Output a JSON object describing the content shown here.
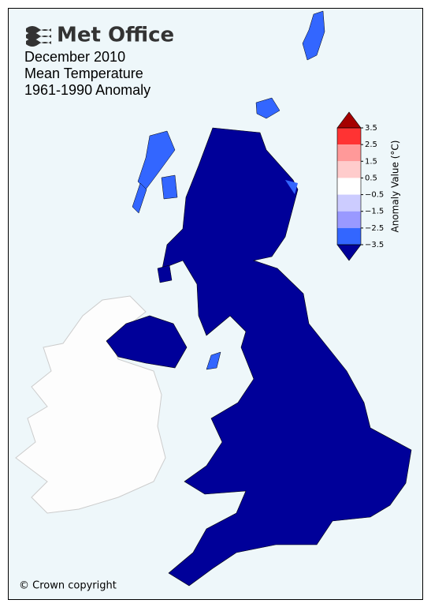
{
  "header": {
    "logo": "Met Office",
    "title_lines": [
      "December 2010",
      "Mean Temperature",
      "1961-1990 Anomaly"
    ]
  },
  "colorbar": {
    "label": "Anomaly Value (°C)",
    "ylim": [
      -3.5,
      3.5
    ],
    "ticks": [
      3.5,
      2.5,
      1.5,
      0.5,
      {
        "value": -0.5,
        "label": "−0.5"
      },
      {
        "value": -1.5,
        "label": "−1.5"
      },
      {
        "value": -2.5,
        "label": "−2.5"
      },
      {
        "value": -3.5,
        "label": "−3.5"
      }
    ],
    "bin_colors": [
      "#ff3333",
      "#ff9999",
      "#ffcccc",
      "#ffffff",
      "#ccccff",
      "#9999ff",
      "#3366ff"
    ],
    "over_color": "#a50000",
    "under_color": "#000099"
  },
  "footer": {
    "copyright": "© Crown copyright"
  }
}
